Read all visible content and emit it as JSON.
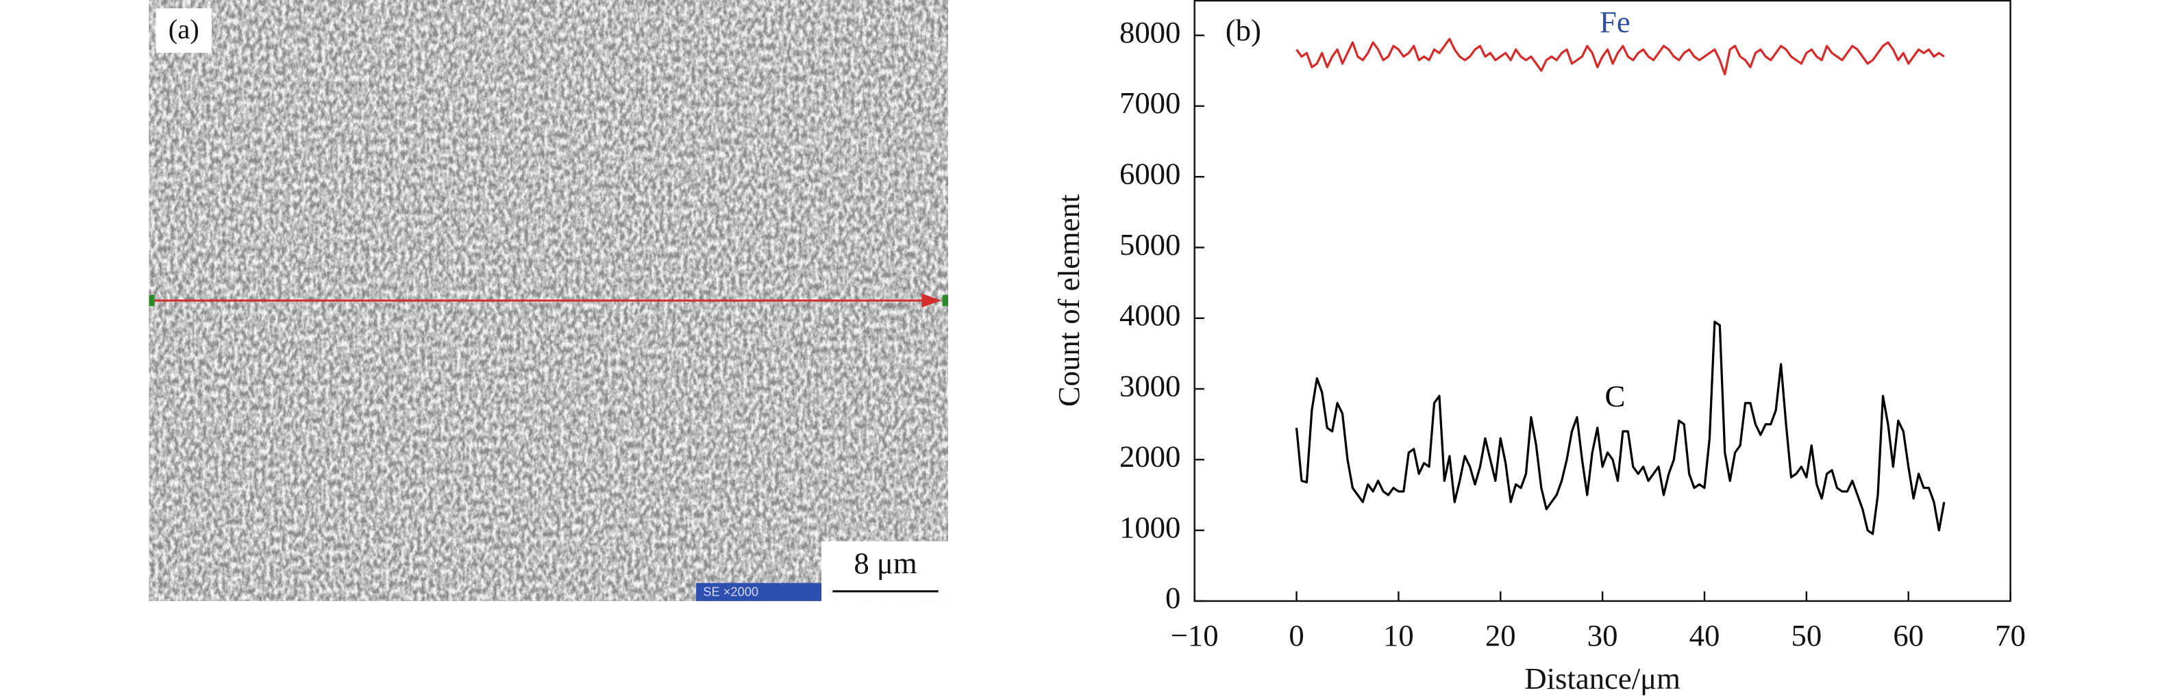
{
  "panel_a": {
    "label": "(a)",
    "scale_bar": "8 μm",
    "caption": "SE ×2000"
  },
  "chart_data": {
    "type": "line",
    "label": "(b)",
    "xlabel": "Distance/μm",
    "ylabel": "Count of element",
    "xlim": [
      -10,
      70
    ],
    "ylim": [
      0,
      8500
    ],
    "xticks": [
      {
        "value": -10,
        "label": "−10"
      },
      0,
      10,
      20,
      30,
      40,
      50,
      60,
      70
    ],
    "yticks": [
      0,
      1000,
      2000,
      3000,
      4000,
      5000,
      6000,
      7000,
      8000
    ],
    "x": [
      0,
      0.5,
      1,
      1.5,
      2,
      2.5,
      3,
      3.5,
      4,
      4.5,
      5,
      5.5,
      6,
      6.5,
      7,
      7.5,
      8,
      8.5,
      9,
      9.5,
      10,
      10.5,
      11,
      11.5,
      12,
      12.5,
      13,
      13.5,
      14,
      14.5,
      15,
      15.5,
      16,
      16.5,
      17,
      17.5,
      18,
      18.5,
      19,
      19.5,
      20,
      20.5,
      21,
      21.5,
      22,
      22.5,
      23,
      23.5,
      24,
      24.5,
      25,
      25.5,
      26,
      26.5,
      27,
      27.5,
      28,
      28.5,
      29,
      29.5,
      30,
      30.5,
      31,
      31.5,
      32,
      32.5,
      33,
      33.5,
      34,
      34.5,
      35,
      35.5,
      36,
      36.5,
      37,
      37.5,
      38,
      38.5,
      39,
      39.5,
      40,
      40.5,
      41,
      41.5,
      42,
      42.5,
      43,
      43.5,
      44,
      44.5,
      45,
      45.5,
      46,
      46.5,
      47,
      47.5,
      48,
      48.5,
      49,
      49.5,
      50,
      50.5,
      51,
      51.5,
      52,
      52.5,
      53,
      53.5,
      54,
      54.5,
      55,
      55.5,
      56,
      56.5,
      57,
      57.5,
      58,
      58.5,
      59,
      59.5,
      60,
      60.5,
      61,
      61.5,
      62,
      62.5,
      63,
      63.5
    ],
    "series": [
      {
        "name": "Fe",
        "color": "#d42b2b",
        "label_color": "#2d4f9e",
        "values": [
          7800,
          7700,
          7750,
          7550,
          7600,
          7750,
          7550,
          7700,
          7800,
          7600,
          7750,
          7900,
          7700,
          7650,
          7750,
          7900,
          7800,
          7650,
          7700,
          7850,
          7800,
          7700,
          7750,
          7850,
          7650,
          7700,
          7650,
          7800,
          7750,
          7850,
          7950,
          7800,
          7700,
          7650,
          7700,
          7800,
          7850,
          7700,
          7750,
          7650,
          7700,
          7750,
          7650,
          7800,
          7700,
          7650,
          7700,
          7600,
          7500,
          7650,
          7700,
          7650,
          7750,
          7800,
          7600,
          7650,
          7700,
          7850,
          7750,
          7550,
          7700,
          7800,
          7600,
          7750,
          7850,
          7700,
          7650,
          7750,
          7800,
          7700,
          7650,
          7750,
          7850,
          7800,
          7700,
          7650,
          7750,
          7800,
          7700,
          7650,
          7700,
          7750,
          7800,
          7650,
          7450,
          7800,
          7850,
          7700,
          7650,
          7550,
          7750,
          7800,
          7700,
          7650,
          7750,
          7850,
          7800,
          7700,
          7650,
          7600,
          7750,
          7800,
          7700,
          7650,
          7850,
          7750,
          7700,
          7650,
          7750,
          7850,
          7800,
          7700,
          7600,
          7650,
          7750,
          7850,
          7900,
          7800,
          7650,
          7750,
          7600,
          7700,
          7800,
          7750,
          7800,
          7700,
          7750,
          7700
        ]
      },
      {
        "name": "C",
        "color": "#000000",
        "label_color": "#000000",
        "values": [
          2450,
          1700,
          1680,
          2700,
          3150,
          2950,
          2450,
          2400,
          2800,
          2650,
          2000,
          1600,
          1500,
          1400,
          1650,
          1550,
          1700,
          1550,
          1500,
          1600,
          1550,
          1550,
          2100,
          2150,
          1800,
          1950,
          1900,
          2800,
          2900,
          1700,
          2050,
          1400,
          1700,
          2050,
          1900,
          1650,
          1900,
          2300,
          2000,
          1700,
          2300,
          1950,
          1400,
          1650,
          1600,
          1800,
          2600,
          2200,
          1600,
          1300,
          1400,
          1500,
          1700,
          2000,
          2400,
          2600,
          2000,
          1500,
          2100,
          2450,
          1900,
          2100,
          2000,
          1700,
          2400,
          2400,
          1900,
          1800,
          1900,
          1700,
          1800,
          1900,
          1500,
          1800,
          2000,
          2550,
          2500,
          1800,
          1600,
          1650,
          1600,
          2300,
          3950,
          3900,
          2100,
          1700,
          2100,
          2200,
          2800,
          2800,
          2500,
          2350,
          2500,
          2500,
          2700,
          3350,
          2500,
          1750,
          1800,
          1900,
          1750,
          2200,
          1650,
          1450,
          1800,
          1850,
          1600,
          1550,
          1550,
          1700,
          1500,
          1300,
          1000,
          950,
          1500,
          2900,
          2500,
          1900,
          2550,
          2400,
          1900,
          1450,
          1800,
          1600,
          1600,
          1400,
          1000,
          1400
        ]
      }
    ]
  }
}
